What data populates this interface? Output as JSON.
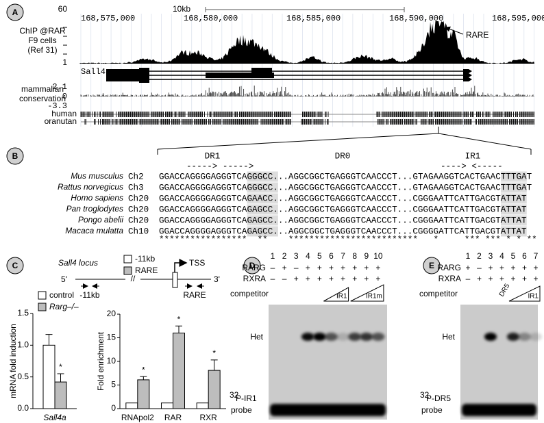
{
  "panel_a": {
    "label": "A",
    "scale": "10kb",
    "coordinates": [
      "168,575,000",
      "168,580,000",
      "168,585,000",
      "168,590,000",
      "168,595,000"
    ],
    "track_max": "60",
    "track_min": "1",
    "track_label": [
      "ChIP @RAR",
      "F9 cells",
      "(Ref 31)"
    ],
    "peak_label": "RARE",
    "gene": "Sall4",
    "conservation_label": [
      "mammalian",
      "conservation"
    ],
    "conservation_ticks": [
      "2.1",
      "0",
      "-3.3"
    ],
    "species": [
      "human",
      "oranutan"
    ]
  },
  "panel_b": {
    "label": "B",
    "motifs": [
      {
        "name": "DR1",
        "arrows": "-----> ----->"
      },
      {
        "name": "DR0",
        "arrows": ""
      },
      {
        "name": "IR1",
        "arrows": "----> <-----"
      }
    ],
    "rows": [
      {
        "species": "Mus musculus",
        "chr": "Ch2",
        "sequence": "GGACCAGGGGAGGGTCAGGGCC...AGGCGGCTGAGGGTCAACCCT...GTAGAAGGTCACTGAACTTTGAT"
      },
      {
        "species": "Rattus norvegicus",
        "chr": "Ch3",
        "sequence": "GGACCAGGGGAGGGTCAGGGCC...AGGCGGCTGAGGGTCAACCCT...GTAGAAGGTCACTGAACTTTGAT"
      },
      {
        "species": "Homo sapiens",
        "chr": "Ch20",
        "sequence": "GGACCAGGGGAGGGTCAGAACC...AGGCGGCTGAGGGTCAACCCT...CGGGAATTCATTGACGTATTAT"
      },
      {
        "species": "Pan troglodytes",
        "chr": "Ch20",
        "sequence": "GGACCAGGGGAGGGTCAGAGCC...AGGCGGCTGAGGGTCAACCCT...CGGGAATTCATTGACGTATTAT"
      },
      {
        "species": "Pongo abelii",
        "chr": "Ch20",
        "sequence": "GGACCAGGGGAGGGTCAGAGCC...AGGCGGCTGAGGGTCAACCCT...CGGGAATTCATTGACGTATTAT"
      },
      {
        "species": "Macaca mulatta",
        "chr": "Ch10",
        "sequence": "GGACCAGGGGAGGGTCAGAGCC...AGGCGGCTGAGGGTCAACCCT...CGGGGATTCATTGACGTATTAT"
      }
    ],
    "conservation": "*****************  **    *************************   *     *** *** * * **"
  },
  "panel_c": {
    "label": "C",
    "locus": "Sall4 locus",
    "tss": "TSS",
    "five_prime": "5'",
    "three_prime": "3'",
    "break": "//",
    "sites": [
      "-11kb",
      "RARE"
    ]
  },
  "chart_data": [
    {
      "type": "bar",
      "y_label": "mRNA fold induction",
      "categories": [
        "Sall4a"
      ],
      "ylim": [
        0,
        1.5
      ],
      "yticks": [
        {
          "value": 0,
          "label": "0.0"
        },
        0.5,
        {
          "value": 1,
          "label": "1.0"
        },
        1.5
      ],
      "series": [
        {
          "name": "control",
          "color": "#ffffff",
          "values": [
            1.0
          ],
          "errors": [
            0.17
          ]
        },
        {
          "name": "Rarg–/–",
          "color": "#bdbdbd",
          "values": [
            0.42
          ],
          "errors": [
            0.13
          ],
          "significance": [
            "*"
          ]
        }
      ]
    },
    {
      "type": "bar",
      "y_label": "Fold enrichment",
      "categories": [
        "RNApol2",
        "RAR",
        "RXR"
      ],
      "ylim": [
        0,
        20
      ],
      "yticks": [
        0,
        5,
        10,
        15,
        20
      ],
      "series": [
        {
          "name": "-11kb",
          "color": "#ffffff",
          "values": [
            1.2,
            1.2,
            1.2
          ]
        },
        {
          "name": "RARE",
          "color": "#bdbdbd",
          "values": [
            6.1,
            16,
            8.1
          ],
          "errors": [
            0.7,
            1.5,
            2.2
          ],
          "significance": [
            "*",
            "*",
            "*"
          ]
        }
      ]
    }
  ],
  "panel_d": {
    "label": "D",
    "lanes": [
      "1",
      "2",
      "3",
      "4",
      "5",
      "6",
      "7",
      "8",
      "9",
      "10"
    ],
    "rows": [
      {
        "name": "RARG",
        "signs": [
          "–",
          "+",
          "–",
          "+",
          "+",
          "+",
          "+",
          "+",
          "+",
          "+"
        ]
      },
      {
        "name": "RXRA",
        "signs": [
          "–",
          "–",
          "+",
          "+",
          "+",
          "+",
          "+",
          "+",
          "+",
          "+"
        ]
      }
    ],
    "competitor": "competitor",
    "competitors": [
      "IR1",
      "IR1m"
    ],
    "band": "Het",
    "probe_isotope": "32",
    "probe_name": "P-IR1",
    "probe": "probe"
  },
  "panel_e": {
    "label": "E",
    "lanes": [
      "1",
      "2",
      "3",
      "4",
      "5",
      "6",
      "7"
    ],
    "rows": [
      {
        "name": "RARG",
        "signs": [
          "+",
          "–",
          "+",
          "+",
          "+",
          "+",
          "+"
        ]
      },
      {
        "name": "RXRA",
        "signs": [
          "–",
          "+",
          "+",
          "+",
          "+",
          "+",
          "+"
        ]
      }
    ],
    "competitor": "competitor",
    "competitors": [
      "DR5",
      "IR1"
    ],
    "band": "Het",
    "probe_isotope": "32",
    "probe_name": "P-DR5",
    "probe": "probe"
  }
}
